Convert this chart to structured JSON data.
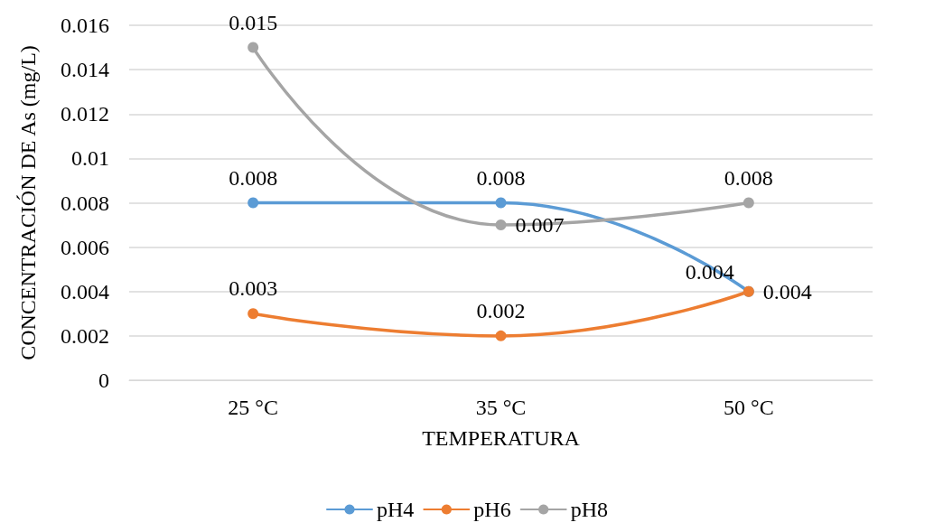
{
  "chart_data": {
    "type": "line",
    "xlabel": "TEMPERATURA",
    "ylabel": "CONCENTRACIÓN DE As (mg/L)",
    "categories": [
      "25 °C",
      "35 °C",
      "50 °C"
    ],
    "series": [
      {
        "name": "pH4",
        "color": "#5b9bd5",
        "values": [
          0.008,
          0.008,
          0.004
        ]
      },
      {
        "name": "pH6",
        "color": "#ed7d31",
        "values": [
          0.003,
          0.002,
          0.004
        ]
      },
      {
        "name": "pH8",
        "color": "#a5a5a5",
        "values": [
          0.015,
          0.007,
          0.008
        ]
      }
    ],
    "ylim": [
      0,
      0.016
    ],
    "yticks": [
      0,
      0.002,
      0.004,
      0.006,
      0.008,
      0.01,
      0.012,
      0.014,
      0.016
    ],
    "grid": "y",
    "legend": "bottom",
    "marker": "circle",
    "line_style": "solid",
    "data_labels": true
  }
}
